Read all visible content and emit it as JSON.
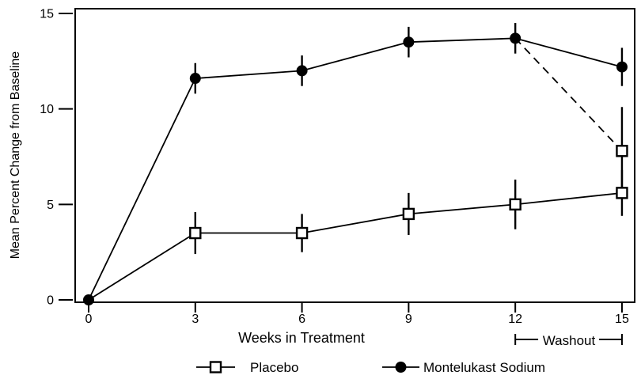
{
  "figure": {
    "background_color": "#ffffff",
    "line_color": "#000000"
  },
  "chart_data": {
    "type": "line",
    "title": "",
    "xlabel": "Weeks in Treatment",
    "ylabel": "Mean Percent Change from Baseline",
    "xlim": [
      0,
      15
    ],
    "ylim": [
      0,
      15
    ],
    "x": [
      0,
      3,
      6,
      9,
      12,
      15
    ],
    "xticks": [
      "0",
      "3",
      "6",
      "9",
      "12",
      "15"
    ],
    "yticks": [
      "0",
      "5",
      "10",
      "15"
    ],
    "grid": false,
    "series": [
      {
        "name": "Placebo",
        "marker": "open-square",
        "line_style": "solid",
        "x": [
          0,
          3,
          6,
          9,
          12,
          15
        ],
        "values": [
          0,
          3.5,
          3.5,
          4.5,
          5.0,
          5.6
        ],
        "errors": [
          0,
          1.1,
          1.0,
          1.1,
          1.3,
          1.2
        ],
        "marker_skip": [
          0
        ],
        "in_legend": true
      },
      {
        "name": "Montelukast Sodium - Washout",
        "marker": "open-square",
        "line_style": "dashed",
        "x": [
          12,
          15
        ],
        "values": [
          13.7,
          7.8
        ],
        "errors": [
          0,
          2.3
        ],
        "marker_skip": [
          0
        ],
        "in_legend": false
      },
      {
        "name": "Montelukast Sodium",
        "marker": "filled-circle",
        "line_style": "solid",
        "x": [
          0,
          3,
          6,
          9,
          12,
          15
        ],
        "values": [
          0,
          11.6,
          12.0,
          13.5,
          13.7,
          12.2
        ],
        "errors": [
          0,
          0.8,
          0.8,
          0.8,
          0.8,
          1.0
        ],
        "marker_skip": [],
        "in_legend": true
      }
    ],
    "legend": {
      "position": "bottom",
      "entries": [
        {
          "label": "Placebo",
          "marker": "open-square",
          "line_style": "solid"
        },
        {
          "label": "Montelukast Sodium",
          "marker": "filled-circle",
          "line_style": "solid"
        }
      ]
    },
    "annotations": [
      {
        "label": "Washout",
        "x_from": 12,
        "x_to": 15,
        "location": "below-x-axis"
      }
    ]
  }
}
